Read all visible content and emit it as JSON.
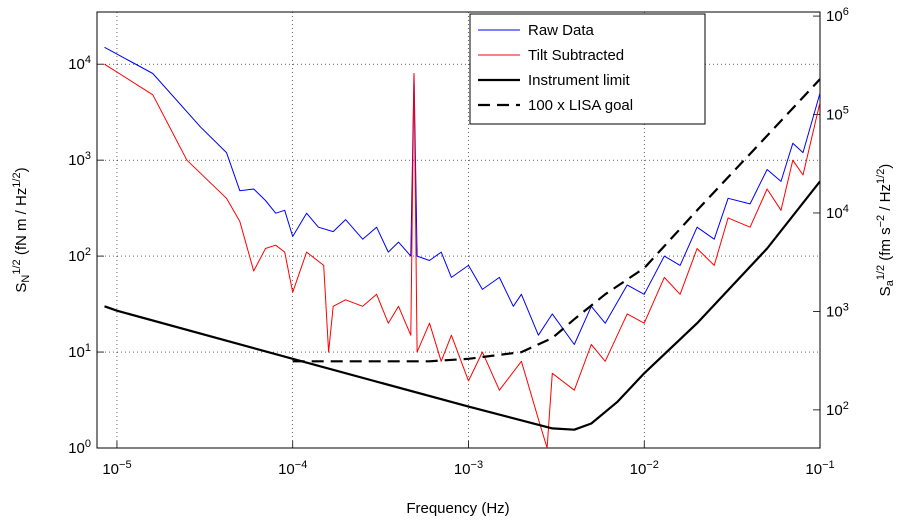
{
  "chart_data": {
    "type": "line",
    "x_label": "Frequency (Hz)",
    "y_label": "S_{N}^{1/2} (fN m / Hz^{1/2})",
    "y2_label": "S_{a}^{1/2} (fm s^{−2} / Hz^{1/2})",
    "log_x": true,
    "log_y": true,
    "grid": true,
    "legend": "upper right",
    "xlim": [
      7.7e-06,
      0.1
    ],
    "ylim": [
      1,
      35000
    ],
    "y2lim": [
      41,
      1100000
    ],
    "xticks": [
      {
        "value": 1e-05,
        "label": "10^{−5}"
      },
      {
        "value": 0.0001,
        "label": "10^{−4}"
      },
      {
        "value": 0.001,
        "label": "10^{−3}"
      },
      {
        "value": 0.01,
        "label": "10^{−2}"
      },
      {
        "value": 0.1,
        "label": "10^{−1}"
      }
    ],
    "yticks": [
      {
        "value": 1,
        "label": "10^{0}"
      },
      {
        "value": 10,
        "label": "10^{1}"
      },
      {
        "value": 100,
        "label": "10^{2}"
      },
      {
        "value": 1000,
        "label": "10^{3}"
      },
      {
        "value": 10000,
        "label": "10^{4}"
      }
    ],
    "y2ticks": [
      {
        "value": 100,
        "label": "10^{2}"
      },
      {
        "value": 1000,
        "label": "10^{3}"
      },
      {
        "value": 10000,
        "label": "10^{4}"
      },
      {
        "value": 100000,
        "label": "10^{5}"
      },
      {
        "value": 1000000,
        "label": "10^{6}"
      }
    ],
    "series": [
      {
        "name": "Raw Data",
        "color": "#0000ff",
        "line_width": 1,
        "line_style": "solid",
        "x": [
          8.5e-06,
          1.6e-05,
          3e-05,
          4.2e-05,
          5e-05,
          6e-05,
          7e-05,
          8e-05,
          9e-05,
          0.0001,
          0.00012,
          0.00014,
          0.00017,
          0.0002,
          0.00025,
          0.0003,
          0.00035,
          0.0004,
          0.00047,
          0.00049,
          0.00051,
          0.0006,
          0.0007,
          0.0008,
          0.001,
          0.0012,
          0.0015,
          0.0018,
          0.002,
          0.0025,
          0.003,
          0.004,
          0.005,
          0.006,
          0.008,
          0.01,
          0.013,
          0.016,
          0.02,
          0.025,
          0.03,
          0.04,
          0.05,
          0.06,
          0.07,
          0.08,
          0.1
        ],
        "values": [
          15000,
          8000,
          2200,
          1200,
          480,
          500,
          380,
          280,
          300,
          160,
          280,
          200,
          180,
          240,
          150,
          200,
          110,
          140,
          100,
          8000,
          100,
          90,
          110,
          60,
          80,
          45,
          60,
          30,
          40,
          15,
          25,
          12,
          30,
          20,
          50,
          40,
          100,
          80,
          200,
          150,
          400,
          350,
          800,
          600,
          1500,
          1200,
          5000
        ]
      },
      {
        "name": "Tilt Subtracted",
        "color": "#ff0000",
        "line_width": 1,
        "line_style": "solid",
        "x": [
          8.5e-06,
          1.6e-05,
          2.5e-05,
          4.2e-05,
          5e-05,
          6e-05,
          7e-05,
          8e-05,
          9e-05,
          0.0001,
          0.00012,
          0.00015,
          0.00016,
          0.00017,
          0.0002,
          0.00025,
          0.0003,
          0.00035,
          0.0004,
          0.00047,
          0.00049,
          0.00051,
          0.0006,
          0.0007,
          0.0008,
          0.001,
          0.0012,
          0.0015,
          0.002,
          0.0025,
          0.0028,
          0.003,
          0.004,
          0.005,
          0.006,
          0.008,
          0.01,
          0.013,
          0.016,
          0.02,
          0.025,
          0.03,
          0.04,
          0.05,
          0.06,
          0.07,
          0.08,
          0.1
        ],
        "values": [
          10000,
          4800,
          1000,
          400,
          230,
          70,
          120,
          130,
          110,
          42,
          110,
          80,
          10,
          30,
          35,
          30,
          40,
          20,
          30,
          15,
          8000,
          10,
          20,
          8,
          15,
          5,
          10,
          4,
          8,
          2,
          1,
          6,
          4,
          12,
          8,
          25,
          20,
          60,
          40,
          120,
          80,
          250,
          200,
          500,
          300,
          1000,
          700,
          4000
        ]
      },
      {
        "name": "Instrument limit",
        "color": "#000000",
        "line_width": 2.2,
        "line_style": "solid",
        "x": [
          8.5e-06,
          1e-05,
          0.0001,
          0.001,
          0.003,
          0.004,
          0.005,
          0.007,
          0.01,
          0.02,
          0.05,
          0.1
        ],
        "values": [
          30,
          27,
          8.5,
          2.7,
          1.6,
          1.55,
          1.8,
          3,
          6,
          20,
          120,
          600
        ]
      },
      {
        "name": "100 x LISA goal",
        "color": "#000000",
        "line_width": 2.2,
        "line_style": "dashed",
        "x": [
          0.0001,
          0.0003,
          0.0006,
          0.001,
          0.002,
          0.003,
          0.004,
          0.006,
          0.01,
          0.02,
          0.05,
          0.1
        ],
        "values": [
          8,
          8,
          8,
          8.5,
          10,
          14,
          22,
          40,
          75,
          300,
          1800,
          7000
        ]
      }
    ]
  }
}
